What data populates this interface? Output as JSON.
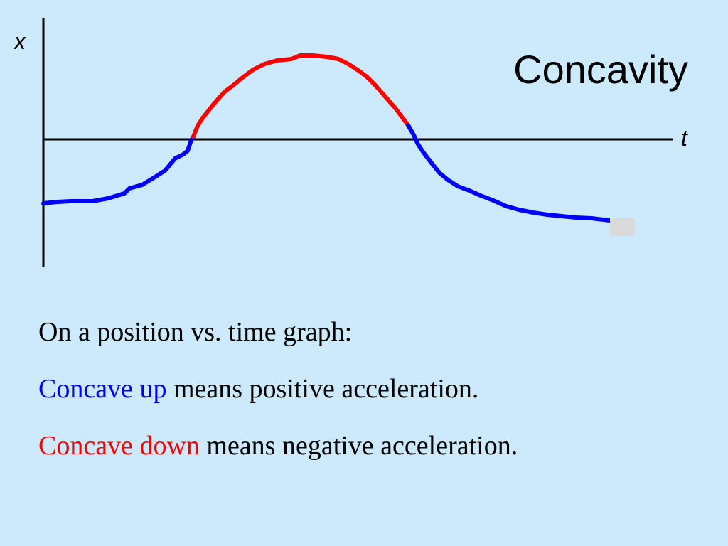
{
  "slide": {
    "title": "Concavity",
    "x_axis_label": "x",
    "t_axis_label": "t"
  },
  "text": {
    "line1": "On a position vs. time graph:",
    "line2_colored": "Concave up",
    "line2_rest": " means positive acceleration.",
    "line3_colored": "Concave down",
    "line3_rest": " means negative acceleration."
  },
  "colors": {
    "background": "#cceafb",
    "concave_up": "#0000ff",
    "concave_down": "#ff0000",
    "axes": "#000000"
  }
}
